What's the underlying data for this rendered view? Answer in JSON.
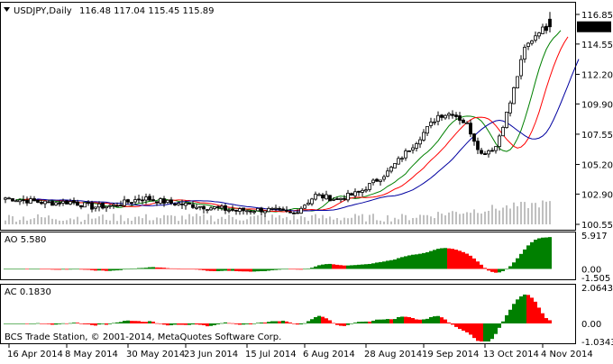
{
  "header": {
    "symbol": "USDJPY,Daily",
    "ohlc": "116.48 117.04 115.45 115.89",
    "ao_label": "AO 5.580",
    "ac_label": "AC 0.1830",
    "copyright": "BCS Trade Station, © 2001-2014, MetaQuotes Software Corp."
  },
  "colors": {
    "background": "#ffffff",
    "candle": "#000000",
    "ma_fast": "#008000",
    "ma_mid": "#ff0000",
    "ma_slow": "#0000a0",
    "volume": "#808080",
    "osc_up": "#008000",
    "osc_down": "#ff0000",
    "price_tag_bg": "#000000",
    "price_tag_fg": "#ffffff"
  },
  "chart_data": [
    {
      "type": "candlestick",
      "name_printed": "USDJPY,Daily",
      "ylim": [
        100.55,
        116.85
      ],
      "y_ticks": [
        "116.85",
        "114.55",
        "112.20",
        "109.90",
        "107.55",
        "105.20",
        "102.90",
        "100.55"
      ],
      "last_price_tag": "115.89",
      "x_labels": [
        "16 Apr 2014",
        "8 May 2014",
        "30 May 2014",
        "23 Jun 2014",
        "15 Jul 2014",
        "6 Aug 2014",
        "28 Aug 2014",
        "19 Sep 2014",
        "13 Oct 2014",
        "4 Nov 2014"
      ],
      "bars": 152,
      "anchors_close": [
        [
          0,
          102.6
        ],
        [
          6,
          102.4
        ],
        [
          12,
          102.2
        ],
        [
          18,
          102.3
        ],
        [
          24,
          101.9
        ],
        [
          30,
          102.0
        ],
        [
          38,
          102.6
        ],
        [
          46,
          102.2
        ],
        [
          56,
          101.9
        ],
        [
          64,
          101.6
        ],
        [
          72,
          101.7
        ],
        [
          80,
          101.4
        ],
        [
          86,
          102.8
        ],
        [
          92,
          102.5
        ],
        [
          98,
          103.0
        ],
        [
          106,
          104.6
        ],
        [
          114,
          107.0
        ],
        [
          120,
          109.0
        ],
        [
          124,
          109.2
        ],
        [
          128,
          108.3
        ],
        [
          132,
          106.0
        ],
        [
          136,
          106.6
        ],
        [
          140,
          110.0
        ],
        [
          144,
          114.2
        ],
        [
          148,
          115.6
        ],
        [
          151,
          115.89
        ]
      ],
      "last_ohlc": {
        "open": 116.48,
        "high": 117.04,
        "low": 115.45,
        "close": 115.89
      },
      "moving_averages": [
        "fast",
        "mid",
        "slow"
      ]
    },
    {
      "type": "bar",
      "name_printed": "AO 5.580",
      "ylim": [
        -1.505,
        5.917
      ],
      "y_ticks": [
        "5.917",
        "0.00",
        "-1.505"
      ],
      "last_value": 5.58
    },
    {
      "type": "bar",
      "name_printed": "AC 0.1830",
      "ylim": [
        -1.0343,
        2.0643
      ],
      "y_ticks": [
        "2.0643",
        "0.00",
        "-1.0343"
      ],
      "last_value": 0.183
    }
  ]
}
